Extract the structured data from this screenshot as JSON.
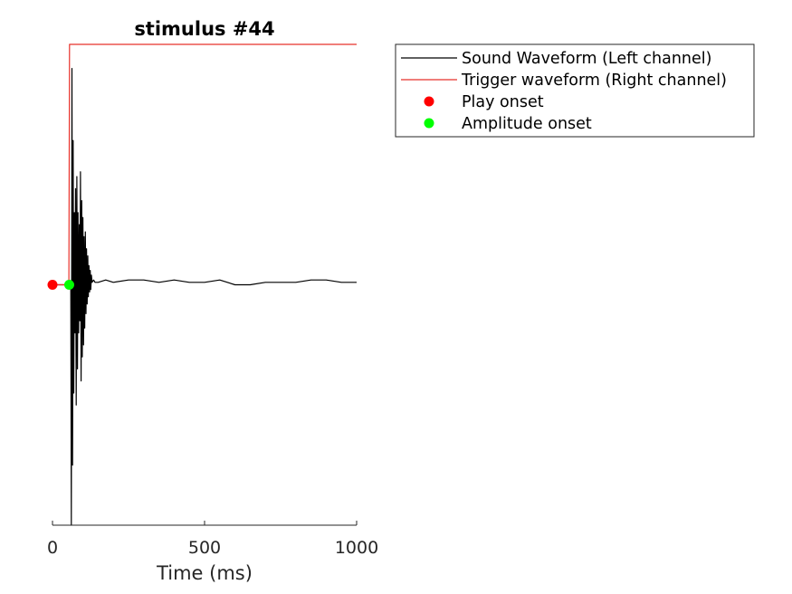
{
  "chart_data": {
    "type": "line",
    "title": "stimulus #44",
    "xlabel": "Time (ms)",
    "ylabel": "",
    "xlim": [
      0,
      1000
    ],
    "ylim": [
      -1,
      1
    ],
    "xticks": [
      0,
      500,
      1000
    ],
    "xtick_labels": [
      "0",
      "500",
      "1000"
    ],
    "grid": false,
    "legend_position": "outside-top-right",
    "series": [
      {
        "name": "Sound Waveform (Left channel)",
        "color": "#000000",
        "kind": "line",
        "x": [
          0,
          55,
          60,
          62,
          64,
          66,
          68,
          70,
          72,
          74,
          76,
          78,
          80,
          82,
          84,
          86,
          88,
          90,
          92,
          94,
          96,
          98,
          100,
          102,
          104,
          106,
          108,
          110,
          112,
          114,
          116,
          118,
          120,
          122,
          124,
          126,
          128,
          130,
          135,
          140,
          150,
          175,
          200,
          250,
          300,
          350,
          400,
          450,
          500,
          550,
          600,
          650,
          700,
          750,
          800,
          850,
          900,
          950,
          1000
        ],
        "y": [
          0,
          0,
          0,
          -1.0,
          0.9,
          -0.75,
          0.6,
          -0.45,
          0.3,
          -0.2,
          0.4,
          -0.5,
          0.45,
          -0.35,
          0.3,
          -0.2,
          0.25,
          -0.15,
          0.47,
          -0.4,
          0.35,
          -0.3,
          0.28,
          -0.25,
          0.2,
          -0.18,
          0.22,
          -0.12,
          0.15,
          -0.08,
          0.12,
          -0.05,
          0.08,
          -0.03,
          0.06,
          -0.02,
          0.04,
          0.01,
          0.02,
          0.01,
          0.01,
          0.02,
          0.01,
          0.02,
          0.02,
          0.01,
          0.02,
          0.01,
          0.01,
          0.02,
          0.0,
          0.0,
          0.01,
          0.01,
          0.01,
          0.02,
          0.02,
          0.01,
          0.01
        ]
      },
      {
        "name": "Trigger waveform (Right channel)",
        "color": "#e8312a",
        "kind": "line",
        "x": [
          0,
          54,
          56,
          1000
        ],
        "y": [
          0,
          0,
          1.0,
          1.0
        ]
      },
      {
        "name": "Play onset",
        "color": "#ff0000",
        "kind": "marker",
        "x": [
          0
        ],
        "y": [
          0
        ]
      },
      {
        "name": "Amplitude onset",
        "color": "#00ff00",
        "kind": "marker",
        "x": [
          55
        ],
        "y": [
          0
        ]
      }
    ]
  }
}
